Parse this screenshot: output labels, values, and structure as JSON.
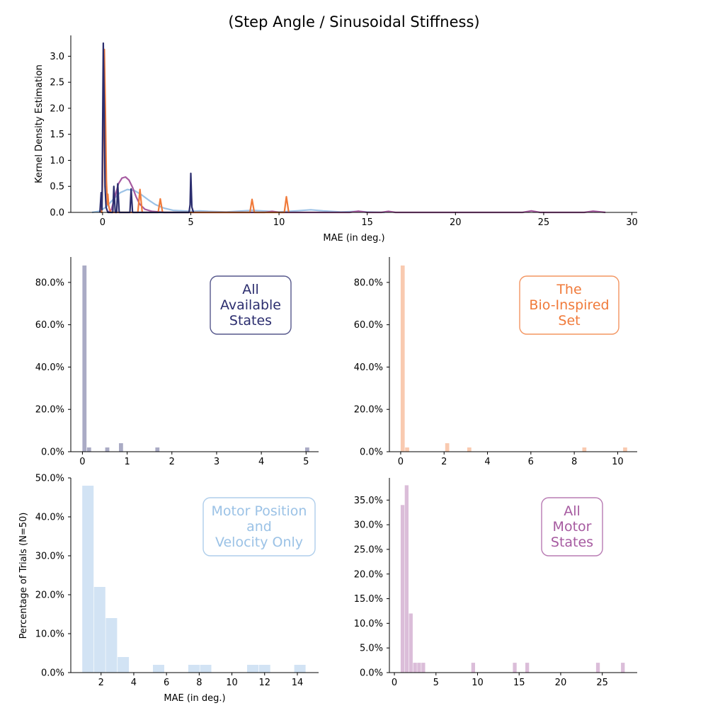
{
  "title": "(Step Angle / Sinusoidal Stiffness)",
  "chart_data": [
    {
      "id": "kde",
      "type": "line",
      "xlabel": "MAE (in deg.)",
      "ylabel": "Kernel Density Estimation",
      "xlim": [
        -1.8,
        30.3
      ],
      "ylim": [
        0,
        3.4
      ],
      "xticks": [
        "0",
        "5",
        "10",
        "15",
        "20",
        "25",
        "30"
      ],
      "yticks": [
        "0.0",
        "0.5",
        "1.0",
        "1.5",
        "2.0",
        "2.5",
        "3.0"
      ],
      "series": [
        {
          "color": "#9bc2e6",
          "points": [
            [
              -0.6,
              0
            ],
            [
              -0.2,
              0.02
            ],
            [
              0.2,
              0.1
            ],
            [
              0.6,
              0.25
            ],
            [
              1.0,
              0.38
            ],
            [
              1.4,
              0.44
            ],
            [
              1.8,
              0.42
            ],
            [
              2.2,
              0.34
            ],
            [
              2.6,
              0.24
            ],
            [
              3.0,
              0.15
            ],
            [
              3.5,
              0.08
            ],
            [
              4.0,
              0.04
            ],
            [
              5.0,
              0.02
            ],
            [
              5.5,
              0.03
            ],
            [
              6.0,
              0.02
            ],
            [
              7.0,
              0.01
            ],
            [
              8.0,
              0.03
            ],
            [
              8.5,
              0.04
            ],
            [
              9.0,
              0.03
            ],
            [
              10.0,
              0.01
            ],
            [
              11.0,
              0.03
            ],
            [
              11.8,
              0.05
            ],
            [
              12.5,
              0.03
            ],
            [
              13.5,
              0.01
            ],
            [
              14.5,
              0.02
            ],
            [
              15.0,
              0.01
            ],
            [
              16,
              0
            ]
          ]
        },
        {
          "color": "#a65aa0",
          "points": [
            [
              0.3,
              0
            ],
            [
              0.5,
              0.05
            ],
            [
              0.7,
              0.3
            ],
            [
              0.9,
              0.55
            ],
            [
              1.1,
              0.66
            ],
            [
              1.3,
              0.68
            ],
            [
              1.5,
              0.62
            ],
            [
              1.7,
              0.48
            ],
            [
              1.9,
              0.3
            ],
            [
              2.1,
              0.16
            ],
            [
              2.4,
              0.06
            ],
            [
              2.8,
              0.02
            ],
            [
              3.5,
              0
            ],
            [
              9.2,
              0
            ],
            [
              9.6,
              0.02
            ],
            [
              10.0,
              0
            ],
            [
              14.0,
              0
            ],
            [
              14.5,
              0.025
            ],
            [
              15.0,
              0
            ],
            [
              15.8,
              0
            ],
            [
              16.2,
              0.02
            ],
            [
              16.6,
              0
            ],
            [
              23.8,
              0
            ],
            [
              24.3,
              0.03
            ],
            [
              24.8,
              0
            ],
            [
              27.3,
              0
            ],
            [
              27.8,
              0.025
            ],
            [
              28.5,
              0
            ]
          ]
        },
        {
          "color": "#f07a3a",
          "points": [
            [
              -0.15,
              0
            ],
            [
              -0.1,
              0.1
            ],
            [
              -0.05,
              0
            ],
            [
              0.0,
              0.6
            ],
            [
              0.05,
              2.6
            ],
            [
              0.1,
              3.13
            ],
            [
              0.16,
              2.0
            ],
            [
              0.22,
              0.6
            ],
            [
              0.28,
              0.15
            ],
            [
              0.3,
              0.35
            ],
            [
              0.34,
              0.15
            ],
            [
              0.4,
              0.05
            ],
            [
              0.5,
              0
            ],
            [
              2.0,
              0
            ],
            [
              2.12,
              0.44
            ],
            [
              2.25,
              0
            ],
            [
              3.15,
              0
            ],
            [
              3.27,
              0.26
            ],
            [
              3.4,
              0
            ],
            [
              8.35,
              0
            ],
            [
              8.47,
              0.25
            ],
            [
              8.6,
              0
            ],
            [
              10.3,
              0
            ],
            [
              10.42,
              0.3
            ],
            [
              10.55,
              0
            ]
          ]
        },
        {
          "color": "#2b2d6e",
          "points": [
            [
              -0.15,
              0
            ],
            [
              -0.08,
              0.38
            ],
            [
              -0.03,
              0.05
            ],
            [
              0.0,
              1.5
            ],
            [
              0.04,
              3.25
            ],
            [
              0.09,
              2.1
            ],
            [
              0.14,
              0.5
            ],
            [
              0.2,
              0.1
            ],
            [
              0.3,
              0
            ],
            [
              0.58,
              0
            ],
            [
              0.64,
              0.5
            ],
            [
              0.72,
              0
            ],
            [
              0.8,
              0
            ],
            [
              0.86,
              0.55
            ],
            [
              0.94,
              0
            ],
            [
              1.55,
              0
            ],
            [
              1.62,
              0.45
            ],
            [
              1.7,
              0
            ],
            [
              4.9,
              0
            ],
            [
              4.96,
              0.15
            ],
            [
              5.0,
              0.75
            ],
            [
              5.06,
              0.1
            ],
            [
              5.15,
              0
            ]
          ]
        }
      ]
    },
    {
      "id": "all-available-states",
      "type": "bar",
      "label": "All\nAvailable\nStates",
      "color": "#2b2d6e",
      "xlim": [
        -0.26,
        5.28
      ],
      "ylim": [
        0,
        0.92
      ],
      "xticks": [
        "0",
        "1",
        "2",
        "3",
        "4",
        "5"
      ],
      "yticks": [
        "0.0%",
        "20.0%",
        "40.0%",
        "60.0%",
        "80.0%"
      ],
      "bin_width": 0.102,
      "bars": [
        [
          0.0,
          0.88
        ],
        [
          0.102,
          0.02
        ],
        [
          0.51,
          0.02
        ],
        [
          0.816,
          0.04
        ],
        [
          1.63,
          0.02
        ],
        [
          4.98,
          0.02
        ]
      ]
    },
    {
      "id": "bio-inspired-set",
      "type": "bar",
      "label": "The\nBio-Inspired\nSet",
      "color": "#f07a3a",
      "xlim": [
        -0.52,
        10.9
      ],
      "ylim": [
        0,
        0.92
      ],
      "xticks": [
        "0",
        "2",
        "4",
        "6",
        "8",
        "10"
      ],
      "yticks": [
        "0.0%",
        "20.0%",
        "40.0%",
        "60.0%",
        "80.0%"
      ],
      "bin_width": 0.205,
      "bars": [
        [
          0.0,
          0.88
        ],
        [
          0.205,
          0.02
        ],
        [
          2.05,
          0.04
        ],
        [
          3.07,
          0.02
        ],
        [
          8.37,
          0.02
        ],
        [
          10.25,
          0.02
        ]
      ]
    },
    {
      "id": "motor-position-velocity",
      "type": "bar",
      "label": "Motor Position\nand\nVelocity Only",
      "color": "#9bc2e6",
      "xlabel": "MAE (in deg.)",
      "ylabel": "Percentage of Trials (N=50)",
      "xlim": [
        0.15,
        15.3
      ],
      "ylim": [
        0,
        0.5
      ],
      "xticks": [
        "2",
        "4",
        "6",
        "8",
        "10",
        "12",
        "14"
      ],
      "yticks": [
        "0.0%",
        "10.0%",
        "20.0%",
        "30.0%",
        "40.0%",
        "50.0%"
      ],
      "bin_width": 0.72,
      "bars": [
        [
          0.85,
          0.48
        ],
        [
          1.57,
          0.22
        ],
        [
          2.29,
          0.14
        ],
        [
          3.01,
          0.04
        ],
        [
          5.17,
          0.02
        ],
        [
          7.33,
          0.02
        ],
        [
          8.05,
          0.02
        ],
        [
          10.93,
          0.02
        ],
        [
          11.65,
          0.02
        ],
        [
          13.81,
          0.02
        ]
      ]
    },
    {
      "id": "all-motor-states",
      "type": "bar",
      "label": "All\nMotor\nStates",
      "color": "#a65aa0",
      "xlim": [
        -0.6,
        29.2
      ],
      "ylim": [
        0,
        0.395
      ],
      "xticks": [
        "0",
        "5",
        "10",
        "15",
        "20",
        "25"
      ],
      "yticks": [
        "0.0%",
        "5.0%",
        "10.0%",
        "15.0%",
        "20.0%",
        "25.0%",
        "30.0%",
        "35.0%"
      ],
      "bin_width": 0.5,
      "bars": [
        [
          0.75,
          0.34
        ],
        [
          1.25,
          0.38
        ],
        [
          1.75,
          0.12
        ],
        [
          2.25,
          0.02
        ],
        [
          2.75,
          0.02
        ],
        [
          3.25,
          0.02
        ],
        [
          9.25,
          0.02
        ],
        [
          14.25,
          0.02
        ],
        [
          15.75,
          0.02
        ],
        [
          24.25,
          0.02
        ],
        [
          27.25,
          0.02
        ]
      ]
    }
  ]
}
